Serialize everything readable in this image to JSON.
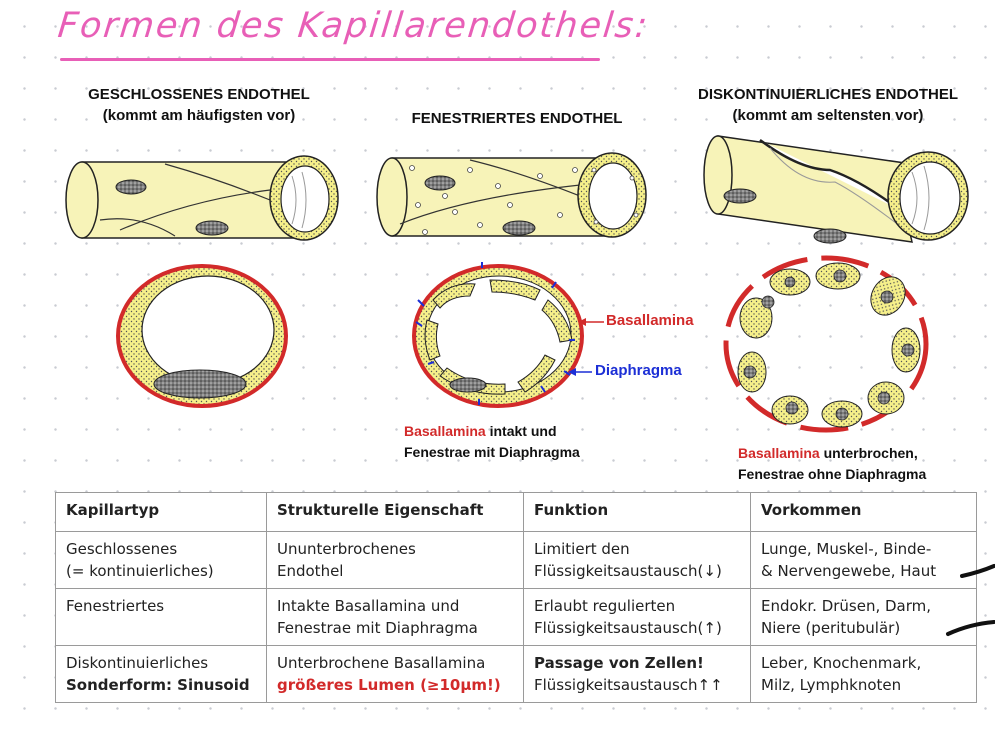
{
  "title": "Formen des Kapillarendothels:",
  "headers": {
    "closed_line1": "GESCHLOSSENES ENDOTHEL",
    "closed_line2": "(kommt am häufigsten vor)",
    "fenestrated": "FENESTRIERTES ENDOTHEL",
    "discont_line1": "DISKONTINUIERLICHES ENDOTHEL",
    "discont_line2": "(kommt am seltensten vor)"
  },
  "labels": {
    "basallamina": "Basallamina",
    "diaphragma": "Diaphragma"
  },
  "captions": {
    "fen_red": "Basallamina",
    "fen_rest1": " intakt und",
    "fen_line2": "Fenestrae mit Diaphragma",
    "dis_red": "Basallamina",
    "dis_rest1": " unterbrochen,",
    "dis_line2": "Fenestrae ohne Diaphragma"
  },
  "colors": {
    "cell": "#f6f08a",
    "tube": "#f7f3b8",
    "basallamina": "#d22a2a",
    "diaphragma": "#1c2fd6",
    "nucleus": "#7d7d7d",
    "title": "#e85fb7"
  },
  "table": {
    "headers": [
      "Kapillartyp",
      "Strukturelle Eigenschaft",
      "Funktion",
      "Vorkommen"
    ],
    "rows": [
      {
        "typ1": "Geschlossenes",
        "typ2": "(= kontinuierliches)",
        "eig1": "Ununterbrochenes",
        "eig2": "Endothel",
        "fun1": "Limitiert den",
        "fun2": "Flüssigkeitsaustausch(↓)",
        "vor1": "Lunge, Muskel-, Binde-",
        "vor2": "& Nervengewebe, Haut"
      },
      {
        "typ1": "Fenestriertes",
        "typ2": "",
        "eig1": "Intakte Basallamina und",
        "eig2": "Fenestrae mit Diaphragma",
        "fun1": "Erlaubt regulierten",
        "fun2": "Flüssigkeitsaustausch(↑)",
        "vor1": "Endokr. Drüsen, Darm,",
        "vor2": "Niere (peritubulär)"
      },
      {
        "typ1": "Diskontinuierliches",
        "typ2": "Sonderform: Sinusoid",
        "eig1": "Unterbrochene Basallamina",
        "eig2": "größeres Lumen (≥10µm!)",
        "fun1": "Passage von Zellen!",
        "fun2": "Flüssigkeitsaustausch↑↑",
        "vor1": "Leber, Knochenmark,",
        "vor2": "Milz, Lymphknoten"
      }
    ]
  }
}
